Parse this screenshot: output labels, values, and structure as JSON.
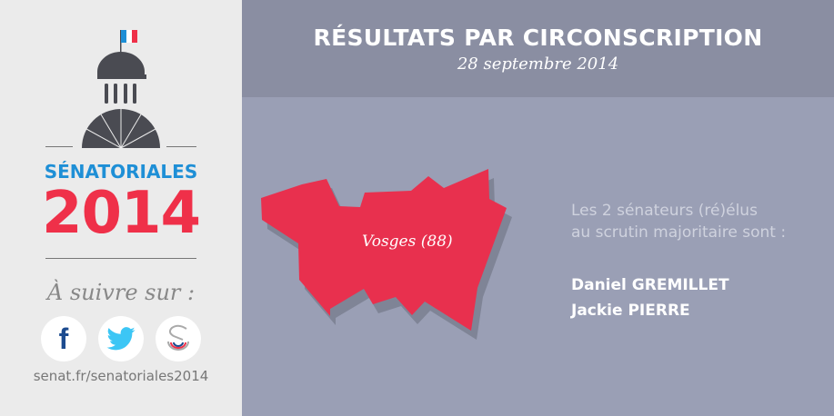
{
  "header": {
    "title": "RÉSULTATS PAR CIRCONSCRIPTION",
    "date": "28 septembre 2014"
  },
  "sidebar": {
    "brand": "SÉNATORIALES",
    "year": "2014",
    "follow": "À suivre sur :",
    "url": "senat.fr/senatoriales2014",
    "social": [
      {
        "icon": "facebook-icon"
      },
      {
        "icon": "twitter-icon"
      },
      {
        "icon": "senat-icon"
      }
    ]
  },
  "map": {
    "label": "Vosges (88)",
    "color": "#e8304e"
  },
  "results": {
    "intro_line1": "Les 2 sénateurs (ré)élus",
    "intro_line2": "au scrutin majoritaire sont :",
    "senators": [
      "Daniel GREMILLET",
      "Jackie PIERRE"
    ]
  }
}
